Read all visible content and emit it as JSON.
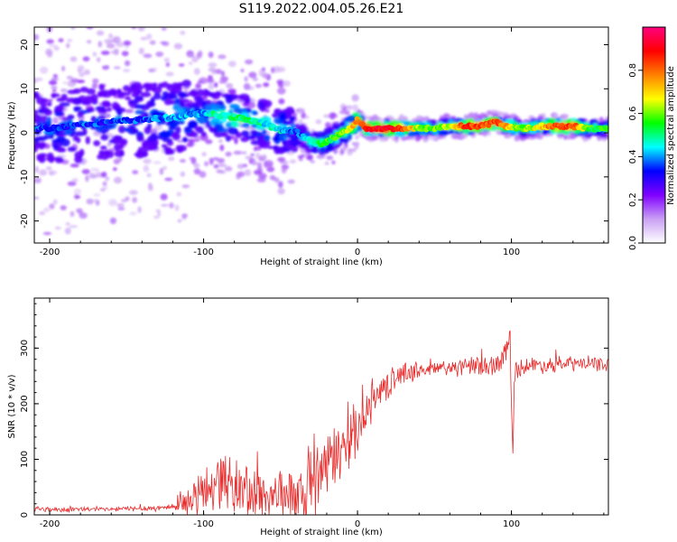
{
  "title": "S119.2022.004.05.26.E21",
  "chart_data": [
    {
      "type": "heatmap",
      "xlabel": "Height of straight line (km)",
      "ylabel": "Frequency (Hz)",
      "xlim": [
        -210,
        163
      ],
      "ylim": [
        -25,
        24
      ],
      "xticks": [
        -200,
        -100,
        0,
        100
      ],
      "yticks": [
        -20,
        -10,
        0,
        10,
        20
      ],
      "colorbar": {
        "label": "Normalized spectral amplitude",
        "range": [
          0,
          1
        ],
        "ticks": [
          "0.0",
          "0.2",
          "0.4",
          "0.6",
          "0.8"
        ],
        "colors": [
          "#ffffff",
          "#c9a0f5",
          "#8000ff",
          "#0000ff",
          "#00ffff",
          "#00ff00",
          "#ffff00",
          "#ff8000",
          "#ff0000",
          "#ff0080"
        ]
      },
      "ridge": {
        "x": [
          -200,
          -180,
          -160,
          -140,
          -120,
          -110,
          -100,
          -90,
          -80,
          -70,
          -60,
          -50,
          -40,
          -35,
          -30,
          -25,
          -20,
          -15,
          -10,
          -5,
          0,
          5,
          10,
          20,
          30,
          40,
          50,
          60,
          70,
          80,
          85,
          90,
          95,
          100,
          105,
          110,
          120,
          130,
          140,
          150,
          160
        ],
        "y": [
          1.0,
          2.0,
          2.5,
          3.0,
          3.5,
          4.0,
          4.5,
          4.0,
          3.5,
          3.0,
          2.0,
          0.5,
          0.5,
          -1.0,
          -2.0,
          -2.5,
          -2.0,
          -1.0,
          0.0,
          1.0,
          3.0,
          1.0,
          1.0,
          1.0,
          1.0,
          1.0,
          1.0,
          1.5,
          1.5,
          1.5,
          2.0,
          2.5,
          1.5,
          1.5,
          1.0,
          1.0,
          1.5,
          1.5,
          1.5,
          1.0,
          1.0
        ],
        "amplitude": [
          0.35,
          0.35,
          0.35,
          0.35,
          0.4,
          0.4,
          0.4,
          0.5,
          0.5,
          0.5,
          0.45,
          0.45,
          0.35,
          0.4,
          0.5,
          0.5,
          0.55,
          0.55,
          0.6,
          0.65,
          0.8,
          0.85,
          0.9,
          0.9,
          0.85,
          0.6,
          0.6,
          0.65,
          0.85,
          0.85,
          0.8,
          0.85,
          0.75,
          0.7,
          0.6,
          0.6,
          0.7,
          0.85,
          0.85,
          0.55,
          0.55
        ]
      }
    },
    {
      "type": "line",
      "xlabel": "Height of straight line (km)",
      "ylabel": "SNR (10 * v/v)",
      "xlim": [
        -210,
        163
      ],
      "ylim": [
        0,
        390
      ],
      "xticks": [
        -200,
        -100,
        0,
        100
      ],
      "yticks": [
        0,
        100,
        200,
        300
      ],
      "color": "#e82b2b",
      "x": [
        -210,
        -200,
        -180,
        -160,
        -140,
        -130,
        -120,
        -115,
        -110,
        -105,
        -100,
        -95,
        -90,
        -85,
        -80,
        -75,
        -70,
        -65,
        -60,
        -55,
        -50,
        -45,
        -40,
        -35,
        -30,
        -25,
        -22,
        -20,
        -15,
        -10,
        -5,
        0,
        5,
        10,
        15,
        20,
        25,
        30,
        35,
        40,
        50,
        60,
        70,
        80,
        85,
        90,
        93,
        95,
        97,
        98,
        99,
        100,
        101,
        102,
        103,
        105,
        110,
        120,
        130,
        140,
        150,
        163
      ],
      "y": [
        12,
        10,
        10,
        10,
        12,
        12,
        15,
        18,
        22,
        30,
        40,
        55,
        65,
        60,
        50,
        45,
        40,
        38,
        35,
        34,
        40,
        38,
        30,
        25,
        45,
        60,
        80,
        90,
        100,
        120,
        135,
        160,
        185,
        205,
        220,
        235,
        245,
        255,
        258,
        260,
        262,
        265,
        265,
        268,
        268,
        270,
        270,
        290,
        300,
        310,
        330,
        180,
        120,
        250,
        265,
        265,
        268,
        270,
        270,
        272,
        272,
        270
      ],
      "noise": {
        "x": [
          -210,
          -160,
          -120,
          -100,
          -70,
          -40,
          -30,
          -20,
          0,
          20,
          40,
          60,
          90,
          110,
          163
        ],
        "amplitude": [
          5,
          4,
          6,
          45,
          55,
          40,
          90,
          60,
          45,
          25,
          15,
          15,
          20,
          15,
          12
        ]
      }
    }
  ]
}
